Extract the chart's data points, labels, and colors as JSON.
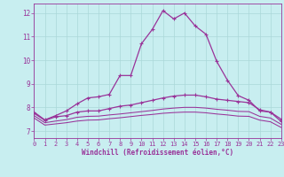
{
  "xlabel": "Windchill (Refroidissement éolien,°C)",
  "xlim": [
    0,
    23
  ],
  "ylim": [
    6.7,
    12.4
  ],
  "xticks": [
    0,
    1,
    2,
    3,
    4,
    5,
    6,
    7,
    8,
    9,
    10,
    11,
    12,
    13,
    14,
    15,
    16,
    17,
    18,
    19,
    20,
    21,
    22,
    23
  ],
  "yticks": [
    7,
    8,
    9,
    10,
    11,
    12
  ],
  "bg_color": "#c8eef0",
  "line_color": "#993399",
  "grid_color": "#aad8d8",
  "line1_x": [
    0,
    1,
    2,
    3,
    4,
    5,
    6,
    7,
    8,
    9,
    10,
    11,
    12,
    13,
    14,
    15,
    16,
    17,
    18,
    19,
    20,
    21,
    22,
    23
  ],
  "line1_y": [
    7.8,
    7.47,
    7.65,
    7.85,
    8.15,
    8.4,
    8.45,
    8.55,
    9.35,
    9.35,
    10.7,
    11.3,
    12.1,
    11.75,
    12.0,
    11.45,
    11.1,
    9.95,
    9.15,
    8.5,
    8.3,
    7.85,
    7.8,
    7.4
  ],
  "line2_x": [
    0,
    1,
    2,
    3,
    4,
    5,
    6,
    7,
    8,
    9,
    10,
    11,
    12,
    13,
    14,
    15,
    16,
    17,
    18,
    19,
    20,
    21,
    22,
    23
  ],
  "line2_y": [
    7.75,
    7.45,
    7.6,
    7.65,
    7.8,
    7.85,
    7.85,
    7.95,
    8.05,
    8.1,
    8.2,
    8.3,
    8.4,
    8.48,
    8.52,
    8.52,
    8.45,
    8.35,
    8.3,
    8.25,
    8.2,
    7.9,
    7.8,
    7.5
  ],
  "line3_x": [
    0,
    1,
    2,
    3,
    4,
    5,
    6,
    7,
    8,
    9,
    10,
    11,
    12,
    13,
    14,
    15,
    16,
    17,
    18,
    19,
    20,
    21,
    22,
    23
  ],
  "line3_y": [
    7.65,
    7.35,
    7.42,
    7.48,
    7.58,
    7.62,
    7.63,
    7.68,
    7.72,
    7.77,
    7.82,
    7.87,
    7.93,
    7.97,
    8.0,
    8.0,
    7.97,
    7.92,
    7.88,
    7.83,
    7.82,
    7.62,
    7.55,
    7.28
  ],
  "line4_x": [
    0,
    1,
    2,
    3,
    4,
    5,
    6,
    7,
    8,
    9,
    10,
    11,
    12,
    13,
    14,
    15,
    16,
    17,
    18,
    19,
    20,
    21,
    22,
    23
  ],
  "line4_y": [
    7.55,
    7.25,
    7.3,
    7.35,
    7.42,
    7.46,
    7.47,
    7.52,
    7.56,
    7.61,
    7.66,
    7.7,
    7.75,
    7.78,
    7.8,
    7.8,
    7.77,
    7.72,
    7.68,
    7.63,
    7.62,
    7.46,
    7.39,
    7.15
  ]
}
